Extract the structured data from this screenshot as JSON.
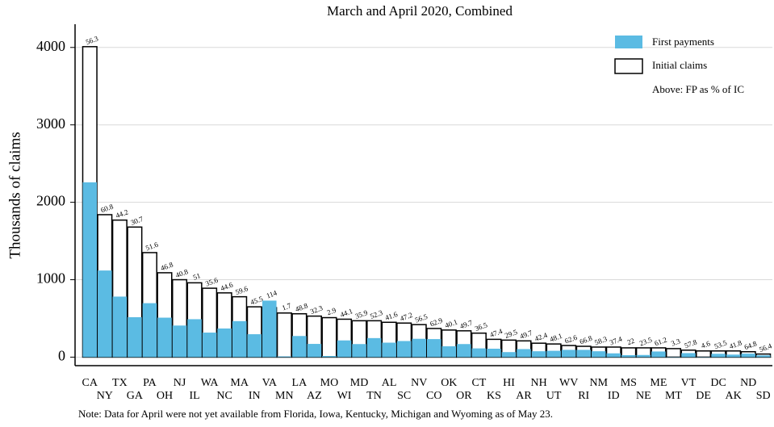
{
  "chart_data": {
    "type": "bar",
    "title": "March and April 2020, Combined",
    "y_label": "Thousands of claims",
    "note": "Note: Data for April were not yet available from Florida, Iowa, Kentucky, Michigan and Wyoming as of May 23.",
    "categories": [
      "CA",
      "NY",
      "TX",
      "GA",
      "PA",
      "OH",
      "NJ",
      "IL",
      "WA",
      "NC",
      "MA",
      "IN",
      "VA",
      "MN",
      "LA",
      "AZ",
      "MO",
      "WI",
      "MD",
      "TN",
      "AL",
      "SC",
      "NV",
      "CO",
      "OK",
      "OR",
      "CT",
      "KS",
      "HI",
      "AR",
      "NH",
      "UT",
      "WV",
      "RI",
      "NM",
      "ID",
      "MS",
      "NE",
      "ME",
      "MT",
      "VT",
      "DE",
      "DC",
      "AK",
      "ND",
      "SD"
    ],
    "series": [
      {
        "name": "Initial claims",
        "color": "#ffffff",
        "values": [
          4010,
          1840,
          1770,
          1680,
          1350,
          1090,
          1000,
          960,
          890,
          830,
          780,
          650,
          640,
          570,
          560,
          530,
          510,
          490,
          470,
          470,
          450,
          440,
          420,
          370,
          350,
          340,
          310,
          230,
          220,
          210,
          180,
          170,
          150,
          140,
          130,
          130,
          120,
          120,
          120,
          110,
          90,
          80,
          80,
          80,
          70,
          40
        ]
      },
      {
        "name": "First payments",
        "color": "#5bbbe3",
        "values": [
          2258,
          1119,
          782,
          516,
          697,
          510,
          408,
          490,
          317,
          370,
          465,
          296,
          730,
          10,
          273,
          171,
          15,
          216,
          169,
          246,
          187,
          208,
          237,
          233,
          140,
          169,
          113,
          109,
          65,
          104,
          76,
          82,
          94,
          94,
          76,
          49,
          26,
          28,
          73,
          4,
          52,
          4,
          43,
          33,
          45,
          23
        ]
      }
    ],
    "ratio": {
      "name": "Above: FP as % of IC",
      "values": [
        56.3,
        60.8,
        44.2,
        30.7,
        51.6,
        46.8,
        40.8,
        51,
        35.6,
        44.6,
        59.6,
        45.5,
        114,
        1.7,
        48.8,
        32.3,
        2.9,
        44.1,
        35.9,
        52.3,
        41.6,
        47.2,
        56.5,
        62.9,
        40.1,
        49.7,
        36.5,
        47.4,
        29.5,
        49.7,
        42.4,
        48.1,
        62.6,
        66.8,
        58.3,
        37.4,
        22,
        23.5,
        61.2,
        3.3,
        57.8,
        4.6,
        53.5,
        41.8,
        64.8,
        56.4
      ]
    },
    "ylim": [
      -110,
      4300
    ],
    "yticks": [
      0,
      1000,
      2000,
      3000,
      4000
    ],
    "grid": true
  }
}
